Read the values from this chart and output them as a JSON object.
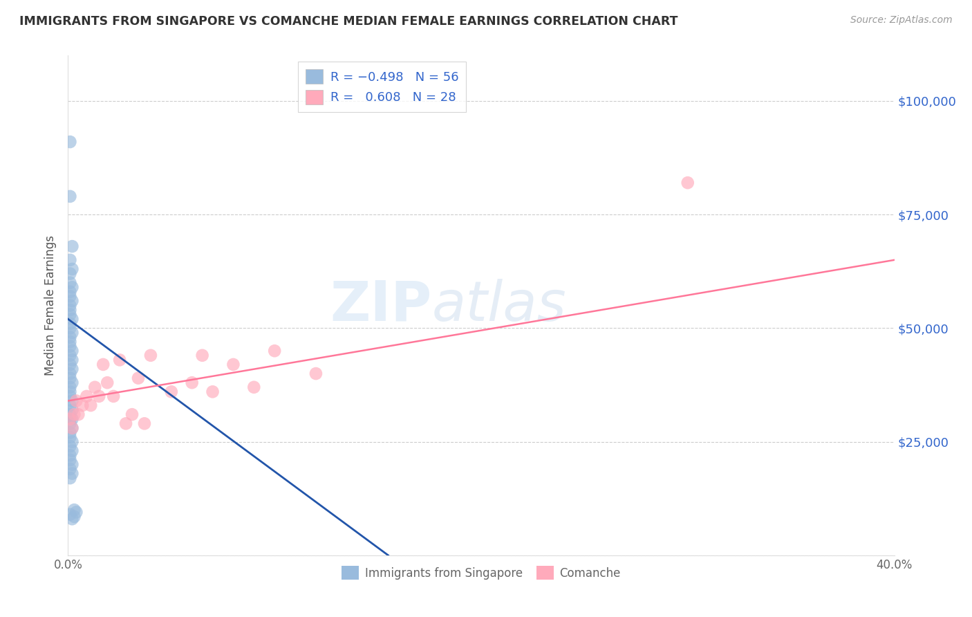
{
  "title": "IMMIGRANTS FROM SINGAPORE VS COMANCHE MEDIAN FEMALE EARNINGS CORRELATION CHART",
  "source": "Source: ZipAtlas.com",
  "ylabel": "Median Female Earnings",
  "x_min": 0.0,
  "x_max": 0.4,
  "y_min": 0,
  "y_max": 110000,
  "y_ticks": [
    0,
    25000,
    50000,
    75000,
    100000
  ],
  "y_tick_labels": [
    "",
    "$25,000",
    "$50,000",
    "$75,000",
    "$100,000"
  ],
  "x_ticks": [
    0.0,
    0.1,
    0.2,
    0.3,
    0.4
  ],
  "x_tick_labels": [
    "0.0%",
    "",
    "",
    "",
    "40.0%"
  ],
  "color_blue": "#99BBDD",
  "color_pink": "#FFAABB",
  "color_blue_line": "#2255AA",
  "color_pink_line": "#FF7799",
  "legend_label1": "Immigrants from Singapore",
  "legend_label2": "Comanche",
  "watermark_zip": "ZIP",
  "watermark_atlas": "atlas",
  "singapore_x": [
    0.001,
    0.001,
    0.002,
    0.001,
    0.002,
    0.001,
    0.001,
    0.002,
    0.001,
    0.001,
    0.002,
    0.001,
    0.001,
    0.001,
    0.002,
    0.001,
    0.001,
    0.002,
    0.001,
    0.001,
    0.001,
    0.002,
    0.001,
    0.002,
    0.001,
    0.002,
    0.001,
    0.001,
    0.002,
    0.001,
    0.001,
    0.001,
    0.002,
    0.001,
    0.002,
    0.001,
    0.002,
    0.001,
    0.001,
    0.002,
    0.001,
    0.001,
    0.002,
    0.001,
    0.002,
    0.001,
    0.001,
    0.002,
    0.001,
    0.002,
    0.001,
    0.001,
    0.004,
    0.003,
    0.003,
    0.002
  ],
  "singapore_y": [
    91000,
    79000,
    68000,
    65000,
    63000,
    62000,
    60000,
    59000,
    58000,
    57000,
    56000,
    55000,
    54000,
    53000,
    52000,
    51000,
    50000,
    49000,
    48000,
    47000,
    46000,
    45000,
    44000,
    43000,
    42000,
    41000,
    40000,
    39000,
    38000,
    37000,
    36000,
    35000,
    34000,
    33000,
    32000,
    31000,
    30000,
    30000,
    29000,
    28000,
    27000,
    26000,
    25000,
    24000,
    23000,
    22000,
    21000,
    20000,
    19000,
    18000,
    17000,
    9000,
    9500,
    10000,
    8500,
    8000
  ],
  "comanche_x": [
    0.001,
    0.002,
    0.004,
    0.005,
    0.007,
    0.009,
    0.011,
    0.013,
    0.015,
    0.017,
    0.019,
    0.022,
    0.025,
    0.028,
    0.031,
    0.034,
    0.037,
    0.04,
    0.05,
    0.06,
    0.065,
    0.07,
    0.08,
    0.09,
    0.1,
    0.12,
    0.3,
    0.003
  ],
  "comanche_y": [
    30000,
    28000,
    34000,
    31000,
    33000,
    35000,
    33000,
    37000,
    35000,
    42000,
    38000,
    35000,
    43000,
    29000,
    31000,
    39000,
    29000,
    44000,
    36000,
    38000,
    44000,
    36000,
    42000,
    37000,
    45000,
    40000,
    82000,
    31000
  ],
  "sg_line_x0": 0.0,
  "sg_line_y0": 52000,
  "sg_line_x1": 0.155,
  "sg_line_y1": 0,
  "com_line_x0": 0.0,
  "com_line_y0": 34000,
  "com_line_x1": 0.4,
  "com_line_y1": 65000
}
